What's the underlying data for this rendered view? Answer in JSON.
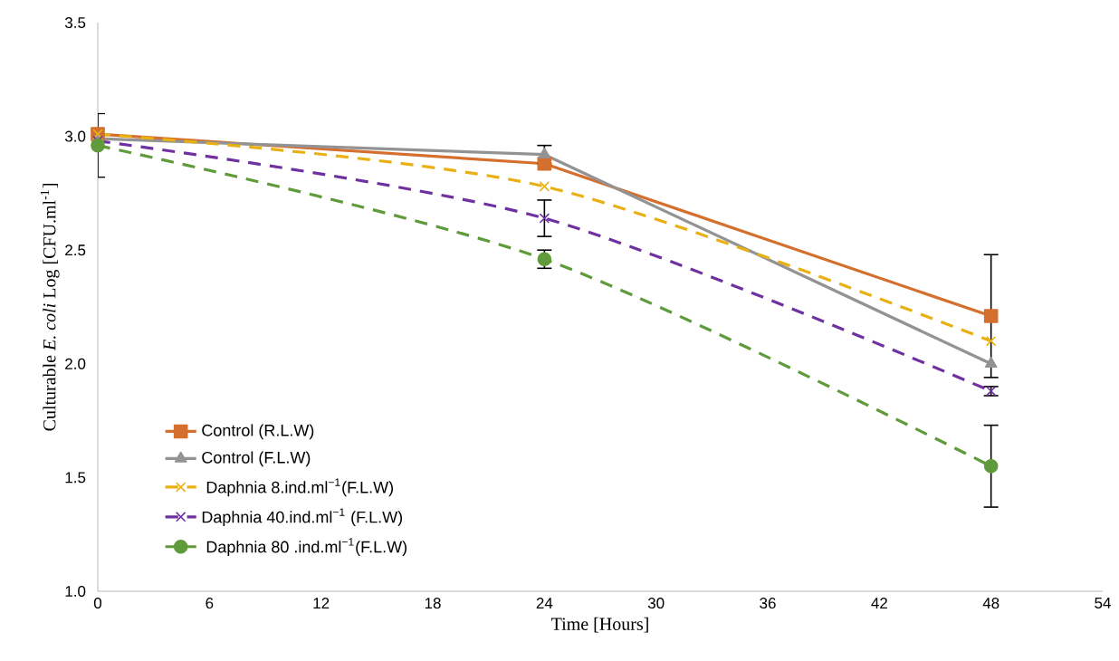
{
  "chart_data": {
    "type": "line",
    "xlabel": "Time [Hours]",
    "ylabel": "Culturable *E. coli* Log [CFU.ml$^{-1}$]",
    "x": [
      0,
      24,
      48
    ],
    "xlim": [
      0,
      54
    ],
    "xticks": [
      0,
      6,
      12,
      18,
      24,
      30,
      36,
      42,
      48,
      54
    ],
    "ylim": [
      1.0,
      3.5
    ],
    "yticks": [
      {
        "value": 1.0,
        "label": "1.0"
      },
      {
        "value": 1.5,
        "label": "1.5"
      },
      {
        "value": 2.0,
        "label": "2.0"
      },
      {
        "value": 2.5,
        "label": "2.5"
      },
      {
        "value": 3.0,
        "label": "3.0"
      },
      {
        "value": 3.5,
        "label": "3.5"
      }
    ],
    "grid": false,
    "legend": "bottom left",
    "series": [
      {
        "name": "Control (R.L.W)",
        "color": "#d46f2e",
        "marker": "square",
        "line_style": "solid",
        "values": [
          3.01,
          2.88,
          2.21
        ],
        "errors": [
          null,
          null,
          0.27
        ]
      },
      {
        "name": "Control (F.L.W)",
        "color": "#939393",
        "marker": "triangle",
        "line_style": "solid",
        "values": [
          2.99,
          2.92,
          2.0
        ],
        "errors": [
          null,
          0.04,
          null
        ]
      },
      {
        "name": " Daphnia 8.ind.ml$^{−1}$(F.L.W)",
        "color": "#e8b012",
        "marker": "cross",
        "line_style": "dashed",
        "values": [
          3.01,
          2.78,
          2.1
        ]
      },
      {
        "name": "Daphnia 40.ind.ml$^{−1}$ (F.L.W)",
        "color": "#7031a0",
        "marker": "cross",
        "line_style": "dashed",
        "values": [
          2.98,
          2.64,
          1.88
        ],
        "errors": [
          null,
          0.08,
          0.02
        ]
      },
      {
        "name": " Daphnia 80 .ind.ml$^{−1}$(F.L.W)",
        "color": "#5f9b3a",
        "marker": "circle",
        "line_style": "dashed",
        "values": [
          2.96,
          2.46,
          1.55
        ],
        "errors": [
          0.14,
          0.04,
          0.18
        ]
      }
    ]
  }
}
